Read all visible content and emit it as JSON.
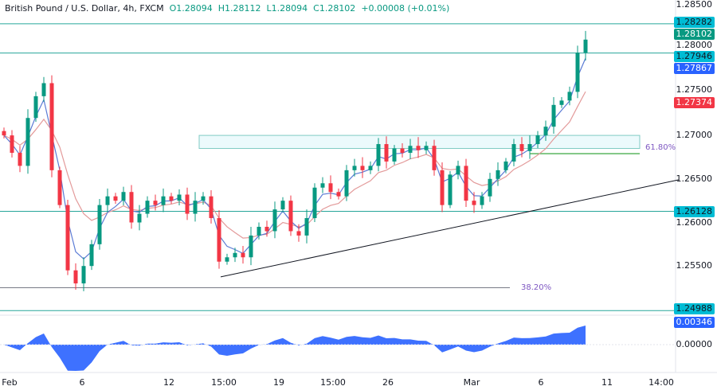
{
  "header": {
    "symbol": "British Pound / U.S. Dollar, 4h, FXCM",
    "open": "O1.28094",
    "high": "H1.28112",
    "low": "L1.28094",
    "close": "C1.28102",
    "change": "+0.00008 (+0.01%)"
  },
  "price_axis": {
    "ticks": [
      "1.28500",
      "1.28000",
      "1.27500",
      "1.27000",
      "1.26500",
      "1.26000",
      "1.25500"
    ],
    "labels": [
      {
        "text": "1.28282",
        "color": "#00bcd4",
        "text_color": "#131722"
      },
      {
        "text": "1.28102",
        "color": "#089981",
        "text_color": "#ffffff"
      },
      {
        "text": "1.27946",
        "color": "#00bcd4",
        "text_color": "#131722"
      },
      {
        "text": "1.27867",
        "color": "#2962ff",
        "text_color": "#ffffff"
      },
      {
        "text": "1.27374",
        "color": "#f23645",
        "text_color": "#ffffff"
      },
      {
        "text": "1.26128",
        "color": "#00bcd4",
        "text_color": "#131722"
      },
      {
        "text": "1.24988",
        "color": "#00bcd4",
        "text_color": "#131722"
      }
    ]
  },
  "osc_axis": {
    "value_label": {
      "text": "0.00346",
      "color": "#2962ff"
    },
    "zero_tick": "0.00000"
  },
  "time_axis": [
    "Feb",
    "6",
    "12",
    "15:00",
    "19",
    "15:00",
    "26",
    "Mar",
    "6",
    "11",
    "14:00"
  ],
  "annotations": {
    "fib_618": "61.80%",
    "fib_382": "38.20%"
  },
  "chart_data": {
    "type": "candlestick",
    "timeframe": "4h",
    "ylim": [
      1.249,
      1.286
    ],
    "levels": [
      1.28282,
      1.27946,
      1.26128,
      1.24988
    ],
    "fib_levels": [
      {
        "label": "61.80%",
        "price": 1.2679
      },
      {
        "label": "38.20%",
        "price": 1.2525
      }
    ],
    "zone": [
      1.2685,
      1.27
    ],
    "trendline": [
      [
        1.25375
      ],
      [
        1.2649
      ]
    ],
    "colors": {
      "up": "#089981",
      "down": "#f23645",
      "fast_ma": "#5b7bd5",
      "slow_ma": "#e39a9a",
      "level": "#26a69a",
      "oscillator": "#2962ff"
    },
    "closes": [
      1.27,
      1.268,
      1.2665,
      1.272,
      1.2745,
      1.276,
      1.266,
      1.262,
      1.2545,
      1.253,
      1.255,
      1.2575,
      1.262,
      1.263,
      1.2625,
      1.2635,
      1.26,
      1.261,
      1.2625,
      1.262,
      1.263,
      1.2625,
      1.2632,
      1.261,
      1.2625,
      1.263,
      1.2605,
      1.2555,
      1.256,
      1.2565,
      1.256,
      1.2585,
      1.2595,
      1.259,
      1.2615,
      1.2625,
      1.259,
      1.2585,
      1.2605,
      1.264,
      1.2645,
      1.2635,
      1.263,
      1.266,
      1.2665,
      1.266,
      1.2665,
      1.269,
      1.267,
      1.2685,
      1.268,
      1.2688,
      1.2683,
      1.2688,
      1.266,
      1.262,
      1.2655,
      1.2665,
      1.2625,
      1.262,
      1.263,
      1.265,
      1.266,
      1.267,
      1.269,
      1.2682,
      1.269,
      1.27,
      1.271,
      1.2735,
      1.274,
      1.275,
      1.2795,
      1.281
    ],
    "last_oscillator_value": 0.00346
  }
}
